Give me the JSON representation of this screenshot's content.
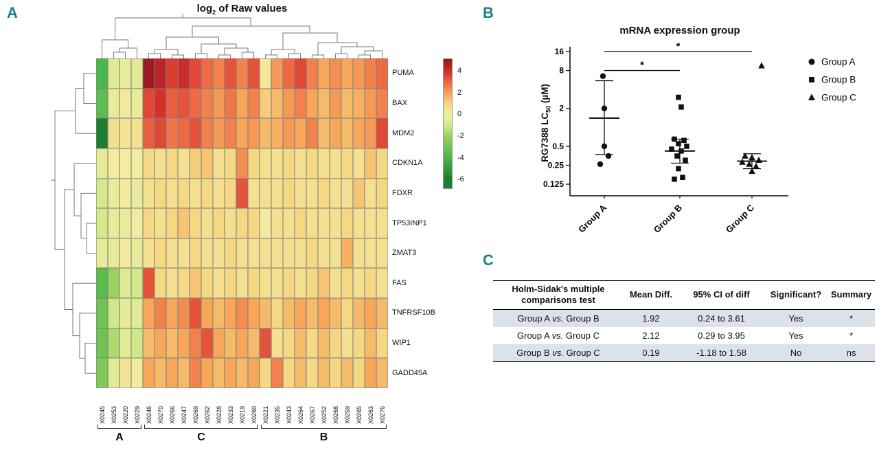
{
  "accent_color": "#1a7f8e",
  "panels": {
    "a": "A",
    "b": "B",
    "c": "C"
  },
  "chart_data": [
    {
      "type": "heatmap",
      "title": {
        "prefix": "log",
        "sub": "2",
        "suffix": " of Raw values"
      },
      "rows": [
        "PUMA",
        "BAX",
        "MDM2",
        "CDKN1A",
        "FDXR",
        "TP53INP1",
        "ZMAT3",
        "FAS",
        "TNFRSF10B",
        "WIP1",
        "GADD45A"
      ],
      "columns": [
        "X0245",
        "X0253",
        "X0220",
        "X0229",
        "X0246",
        "X0270",
        "X0266",
        "X0247",
        "X0269",
        "X0262",
        "X0228",
        "X0233",
        "X0219",
        "X0260",
        "X0221",
        "X0235",
        "X0243",
        "X0264",
        "X0267",
        "X0252",
        "X0268",
        "X0259",
        "X0265",
        "X0263",
        "X0276"
      ],
      "values": [
        [
          -4,
          -0.5,
          -0.3,
          -0.5,
          5,
          4.5,
          3.8,
          4.2,
          3.6,
          3,
          2.6,
          3.4,
          2.6,
          3.4,
          0.3,
          2.2,
          3,
          3.6,
          2.6,
          2,
          2.4,
          2,
          2.2,
          2.6,
          3
        ],
        [
          -3.5,
          -0.3,
          0.2,
          -0.3,
          3.6,
          4,
          3.2,
          3.4,
          3,
          2.6,
          2.2,
          2.8,
          2,
          2.6,
          1.2,
          1.6,
          2.2,
          2.6,
          2,
          1.6,
          2.2,
          1.6,
          1.8,
          2.2,
          2.6
        ],
        [
          -6,
          0.6,
          0.4,
          0.6,
          3.2,
          3.6,
          2.8,
          3,
          3.4,
          2.6,
          2.2,
          2.6,
          2,
          2.2,
          1.6,
          1.8,
          2.2,
          2,
          2.6,
          1.6,
          2,
          1.6,
          2,
          2.2,
          3.6
        ],
        [
          -0.4,
          0.1,
          0,
          0.1,
          1,
          0.6,
          1,
          0.6,
          1.2,
          1.4,
          0.6,
          1,
          2.4,
          1,
          0.6,
          0.6,
          1,
          0.6,
          1,
          0.6,
          0.6,
          1,
          0.6,
          1.4,
          1
        ],
        [
          -0.8,
          -0.3,
          0.1,
          -0.3,
          0.6,
          1,
          0.6,
          1,
          0.6,
          1,
          0.6,
          1,
          3.4,
          0.6,
          0.6,
          0.6,
          1,
          0.6,
          0.6,
          1,
          0.6,
          0.6,
          1.4,
          0.6,
          1
        ],
        [
          -0.9,
          -0.4,
          -0.3,
          0.1,
          1,
          0.6,
          1,
          1.4,
          1,
          0.6,
          1,
          0.6,
          1,
          1,
          0.1,
          0.6,
          0.6,
          1,
          0.6,
          0.6,
          0.6,
          1,
          0.6,
          0.6,
          0.6
        ],
        [
          -0.4,
          -0.4,
          0.1,
          -0.3,
          0.6,
          1,
          0.6,
          0.6,
          1,
          0.6,
          0.6,
          1,
          0.6,
          0.6,
          0.6,
          0.6,
          0.6,
          0.6,
          1,
          0.6,
          0.6,
          1.8,
          0.6,
          0.6,
          0.6
        ],
        [
          -3.6,
          -2,
          -0.6,
          -1,
          3.4,
          1,
          0.6,
          1,
          1.4,
          1,
          0.6,
          1,
          0.6,
          1,
          0.6,
          0.6,
          1,
          0.6,
          1,
          1.4,
          0.6,
          1,
          0.6,
          1,
          0.6
        ],
        [
          -3,
          -1,
          -0.4,
          -0.5,
          2,
          2.6,
          2,
          2.4,
          3.4,
          2,
          1.6,
          2,
          2.4,
          2,
          1.6,
          1,
          1.6,
          2,
          1.6,
          2,
          1.6,
          1,
          1.6,
          2,
          1.6
        ],
        [
          -3,
          -1.6,
          -0.5,
          -1,
          1.6,
          2,
          1.6,
          2,
          2.6,
          3.4,
          2,
          1.6,
          2,
          1.6,
          3.4,
          0.6,
          1,
          1.6,
          1,
          1.6,
          1,
          0.6,
          1,
          1.6,
          1
        ],
        [
          -2.6,
          -0.5,
          0.5,
          0.1,
          2,
          1.6,
          2,
          1.6,
          2.6,
          2,
          1.6,
          2,
          1.6,
          2,
          1,
          2.6,
          1,
          1.6,
          1,
          1.6,
          1,
          1.6,
          1,
          2,
          1.6
        ]
      ],
      "colorscale": {
        "stops": [
          [
            -6,
            "#1d7d31"
          ],
          [
            -4,
            "#4bb649"
          ],
          [
            -2,
            "#97d25f"
          ],
          [
            -1,
            "#cfe88a"
          ],
          [
            0,
            "#f3eda1"
          ],
          [
            1,
            "#f5d884"
          ],
          [
            2,
            "#f7a65a"
          ],
          [
            3,
            "#ee6a44"
          ],
          [
            4,
            "#d7302a"
          ],
          [
            5,
            "#9b1a22"
          ]
        ],
        "legend_ticks": [
          4,
          2,
          0,
          -2,
          -4,
          -6
        ],
        "legend_range": [
          5.2,
          -6.8
        ]
      },
      "groups": [
        {
          "label": "A",
          "start": 0,
          "end": 3
        },
        {
          "label": "C",
          "start": 4,
          "end": 13
        },
        {
          "label": "B",
          "start": 14,
          "end": 24
        }
      ]
    },
    {
      "type": "scatter",
      "title": "mRNA expression group",
      "ylabel": {
        "prefix": "RG7388 LC",
        "sub": "50",
        "suffix": " (µM)"
      },
      "yticks": [
        "16",
        "8",
        "2",
        "0.5",
        "0.25",
        "0.125"
      ],
      "series": [
        {
          "name": "Group A",
          "marker": "circle",
          "mean": 1.4,
          "sd_low": 0.37,
          "sd_high": 5.5,
          "points": [
            {
              "v": 6.5,
              "dx": -2
            },
            {
              "v": 2.0,
              "dx": 0
            },
            {
              "v": 0.5,
              "dx": 0
            },
            {
              "v": 0.35,
              "dx": 6
            },
            {
              "v": 0.26,
              "dx": -6
            }
          ]
        },
        {
          "name": "Group B",
          "marker": "square",
          "mean": 0.42,
          "sd_low": 0.27,
          "sd_high": 0.65,
          "points": [
            {
              "v": 3.0,
              "dx": -2
            },
            {
              "v": 2.1,
              "dx": 2
            },
            {
              "v": 0.65,
              "dx": -8
            },
            {
              "v": 0.62,
              "dx": 6
            },
            {
              "v": 0.55,
              "dx": -2
            },
            {
              "v": 0.5,
              "dx": 10
            },
            {
              "v": 0.45,
              "dx": -12
            },
            {
              "v": 0.42,
              "dx": 2
            },
            {
              "v": 0.35,
              "dx": -4
            },
            {
              "v": 0.3,
              "dx": 8
            },
            {
              "v": 0.22,
              "dx": -2
            },
            {
              "v": 0.16,
              "dx": 4
            },
            {
              "v": 0.15,
              "dx": -8
            }
          ]
        },
        {
          "name": "Group C",
          "marker": "triangle",
          "mean": 0.29,
          "sd_low": 0.22,
          "sd_high": 0.38,
          "points": [
            {
              "v": 9.5,
              "dx": 14
            },
            {
              "v": 0.35,
              "dx": -10
            },
            {
              "v": 0.33,
              "dx": 0
            },
            {
              "v": 0.3,
              "dx": 10
            },
            {
              "v": 0.28,
              "dx": -14
            },
            {
              "v": 0.26,
              "dx": -4
            },
            {
              "v": 0.24,
              "dx": 6
            },
            {
              "v": 0.2,
              "dx": 0
            }
          ]
        }
      ],
      "significance": [
        {
          "between": [
            "Group A",
            "Group C"
          ],
          "level": 16,
          "label": "*"
        },
        {
          "between": [
            "Group A",
            "Group B"
          ],
          "level": 8,
          "label": "*"
        }
      ],
      "legend": [
        {
          "label": "Group A",
          "marker": "circle"
        },
        {
          "label": "Group B",
          "marker": "square"
        },
        {
          "label": "Group C",
          "marker": "triangle"
        }
      ]
    },
    {
      "type": "table",
      "headers": [
        "Holm-Sidak's multiple comparisons test",
        "Mean Diff.",
        "95% CI of diff",
        "Significant?",
        "Summary"
      ],
      "rows": [
        [
          "Group A vs. Group B",
          "1.92",
          "0.24 to 3.61",
          "Yes",
          "*"
        ],
        [
          "Group A vs. Group C",
          "2.12",
          "0.29 to 3.95",
          "Yes",
          "*"
        ],
        [
          "Group B vs. Group C",
          "0.19",
          "-1.18 to 1.58",
          "No",
          "ns"
        ]
      ],
      "row_shade": "#dbe2ea"
    }
  ]
}
